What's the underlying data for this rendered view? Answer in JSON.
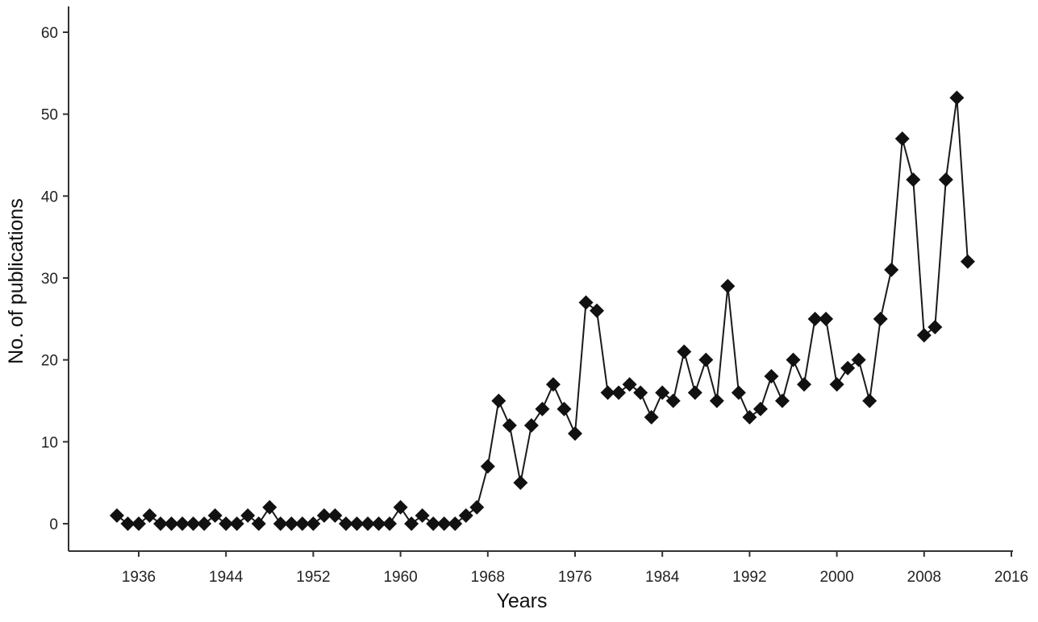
{
  "chart_data": {
    "type": "line",
    "title": "",
    "xlabel": "Years",
    "ylabel": "No. of publications",
    "xlim": [
      1929,
      2016
    ],
    "ylim": [
      -3,
      62
    ],
    "x_ticks": [
      1936,
      1944,
      1952,
      1960,
      1968,
      1976,
      1984,
      1992,
      2000,
      2008,
      2016
    ],
    "y_ticks": [
      0,
      10,
      20,
      30,
      40,
      50,
      60
    ],
    "grid": false,
    "marker": "diamond",
    "line_color": "#1a1a1a",
    "marker_color": "#111111",
    "series": [
      {
        "x": [
          1934,
          1935,
          1936,
          1937,
          1938,
          1939,
          1940,
          1941,
          1942,
          1943,
          1944,
          1945,
          1946,
          1947,
          1948,
          1949,
          1950,
          1951,
          1952,
          1953,
          1954,
          1955,
          1956,
          1957,
          1958,
          1959,
          1960,
          1961,
          1962,
          1963,
          1964,
          1965,
          1966,
          1967,
          1968,
          1969,
          1970,
          1971,
          1972,
          1973,
          1974,
          1975,
          1976,
          1977,
          1978,
          1979,
          1980,
          1981,
          1982,
          1983,
          1984,
          1985,
          1986,
          1987,
          1988,
          1989,
          1990,
          1991,
          1992,
          1993,
          1994,
          1995,
          1996,
          1997,
          1998,
          1999,
          2000,
          2001,
          2002,
          2003,
          2004,
          2005,
          2006,
          2007,
          2008,
          2009,
          2010,
          2011,
          2012
        ],
        "y": [
          1,
          0,
          0,
          1,
          0,
          0,
          0,
          0,
          0,
          1,
          0,
          0,
          1,
          0,
          2,
          0,
          0,
          0,
          0,
          1,
          1,
          0,
          0,
          0,
          0,
          0,
          2,
          0,
          1,
          0,
          0,
          0,
          1,
          2,
          7,
          15,
          12,
          5,
          12,
          14,
          17,
          14,
          11,
          27,
          26,
          16,
          16,
          17,
          16,
          13,
          16,
          15,
          21,
          16,
          20,
          15,
          29,
          16,
          13,
          14,
          18,
          15,
          20,
          17,
          25,
          25,
          17,
          19,
          20,
          15,
          25,
          31,
          47,
          42,
          23,
          24,
          42,
          52,
          32
        ]
      }
    ]
  }
}
